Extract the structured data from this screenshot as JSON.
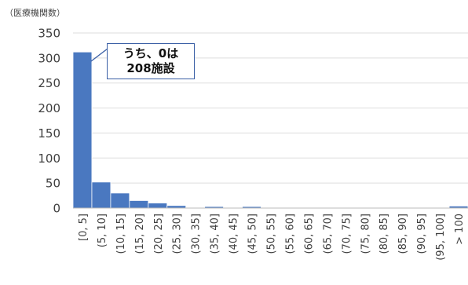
{
  "chart_data": {
    "type": "bar",
    "y_unit_label": "（医療機関数）",
    "categories": [
      "[0, 5]",
      "(5, 10]",
      "(10, 15]",
      "(15, 20]",
      "(20, 25]",
      "(25, 30]",
      "(30, 35]",
      "(35, 40]",
      "(40, 45]",
      "(45, 50]",
      "(50, 55]",
      "(55, 60]",
      "(60, 65]",
      "(65, 70]",
      "(70, 75]",
      "(75, 80]",
      "(80, 85]",
      "(85, 90]",
      "(90, 95]",
      "(95, 100]",
      "> 100"
    ],
    "values": [
      312,
      52,
      30,
      15,
      10,
      5,
      1,
      3,
      1,
      3,
      1,
      1,
      0,
      0,
      0,
      0,
      1,
      0,
      0,
      0,
      4
    ],
    "ylim": [
      0,
      350
    ],
    "yticks": [
      0,
      50,
      100,
      150,
      200,
      250,
      300,
      350
    ],
    "grid": true,
    "bar_color": "#4a78c0",
    "annotation": {
      "line1": "うち、0は",
      "line2": "208施設"
    }
  }
}
